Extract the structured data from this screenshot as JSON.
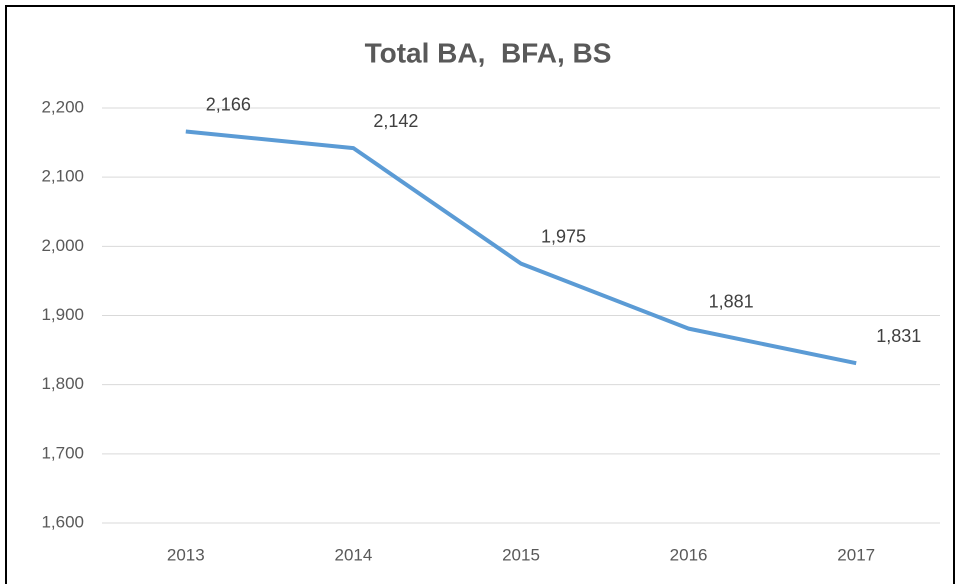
{
  "chart_data": {
    "type": "line",
    "title": "Total BA,  BFA, BS",
    "categories": [
      "2013",
      "2014",
      "2015",
      "2016",
      "2017"
    ],
    "series": [
      {
        "name": "Total BA, BFA, BS",
        "color": "#5b9bd5",
        "values": [
          2166,
          2142,
          1975,
          1881,
          1831
        ],
        "value_labels": [
          "2,166",
          "2,142",
          "1,975",
          "1,881",
          "1,831"
        ]
      }
    ],
    "ylim": [
      1600,
      2200
    ],
    "yticks": [
      {
        "value": 1600,
        "label": "1,600"
      },
      {
        "value": 1700,
        "label": "1,700"
      },
      {
        "value": 1800,
        "label": "1,800"
      },
      {
        "value": 1900,
        "label": "1,900"
      },
      {
        "value": 2000,
        "label": "2,000"
      },
      {
        "value": 2100,
        "label": "2,100"
      },
      {
        "value": 2200,
        "label": "2,200"
      }
    ],
    "grid": true
  }
}
